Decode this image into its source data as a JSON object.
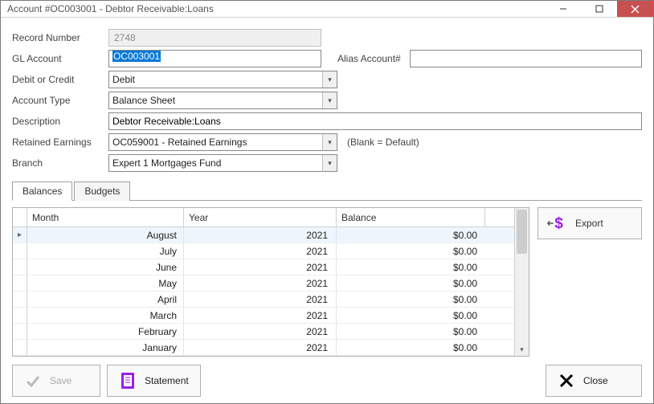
{
  "window": {
    "title": "Account #OC003001 - Debtor Receivable:Loans"
  },
  "form": {
    "record_number_label": "Record Number",
    "record_number": "2748",
    "gl_account_label": "GL Account",
    "gl_account": "OC003001",
    "alias_label": "Alias Account#",
    "alias_value": "",
    "debit_credit_label": "Debit or Credit",
    "debit_credit": "Debit",
    "account_type_label": "Account Type",
    "account_type": "Balance Sheet",
    "description_label": "Description",
    "description": "Debtor Receivable:Loans",
    "retained_label": "Retained Earnings",
    "retained": "OC059001 - Retained Earnings",
    "retained_note": "(Blank = Default)",
    "branch_label": "Branch",
    "branch": "Expert 1 Mortgages Fund"
  },
  "tabs": {
    "balances": "Balances",
    "budgets": "Budgets"
  },
  "grid": {
    "columns": {
      "month": "Month",
      "year": "Year",
      "balance": "Balance"
    },
    "rows": [
      {
        "month": "August",
        "year": "2021",
        "balance": "$0.00",
        "selected": true
      },
      {
        "month": "July",
        "year": "2021",
        "balance": "$0.00"
      },
      {
        "month": "June",
        "year": "2021",
        "balance": "$0.00"
      },
      {
        "month": "May",
        "year": "2021",
        "balance": "$0.00"
      },
      {
        "month": "April",
        "year": "2021",
        "balance": "$0.00"
      },
      {
        "month": "March",
        "year": "2021",
        "balance": "$0.00"
      },
      {
        "month": "February",
        "year": "2021",
        "balance": "$0.00"
      },
      {
        "month": "January",
        "year": "2021",
        "balance": "$0.00"
      }
    ]
  },
  "buttons": {
    "export": "Export",
    "save": "Save",
    "statement": "Statement",
    "close": "Close"
  },
  "colors": {
    "accent": "#9b1fe8",
    "close_btn": "#c75050",
    "selection": "#0078d7",
    "row_highlight": "#eef6fd"
  }
}
